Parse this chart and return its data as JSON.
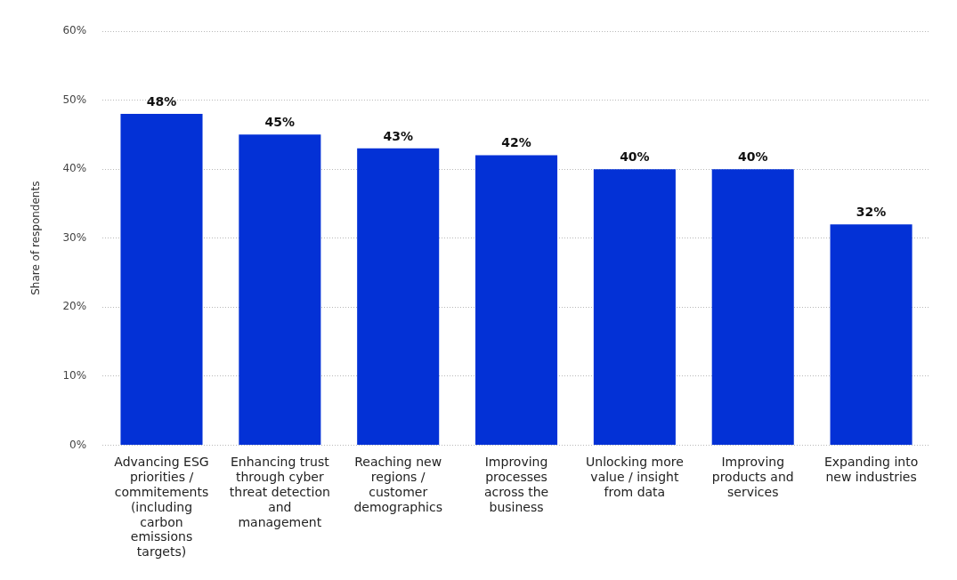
{
  "chart_data": {
    "type": "bar",
    "ylabel": "Share of respondents",
    "categories": [
      "Advancing ESG priorities / commitements (including carbon emissions targets)",
      "Enhancing trust through cyber threat detection and management",
      "Reaching new regions / customer demographics",
      "Improving processes across the business",
      "Unlocking more value / insight from data",
      "Improving products and services",
      "Expanding into new industries"
    ],
    "values": [
      48,
      45,
      43,
      42,
      40,
      40,
      32
    ],
    "color": "#0331d6",
    "ylim": [
      0,
      60
    ],
    "yticks": [
      {
        "value": 0,
        "label": "0%"
      },
      {
        "value": 10,
        "label": "10%"
      },
      {
        "value": 20,
        "label": "20%"
      },
      {
        "value": 30,
        "label": "30%"
      },
      {
        "value": 40,
        "label": "40%"
      },
      {
        "value": 50,
        "label": "50%"
      },
      {
        "value": 60,
        "label": "60%"
      }
    ],
    "value_labels": [
      "48%",
      "45%",
      "43%",
      "42%",
      "40%",
      "40%",
      "32%"
    ],
    "grid": "y",
    "legend": false
  }
}
